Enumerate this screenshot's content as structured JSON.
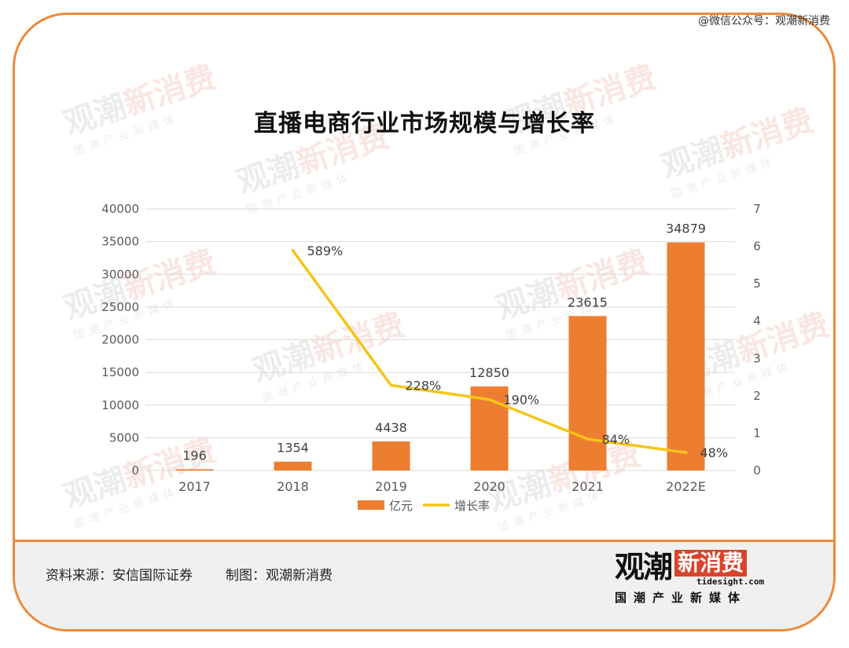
{
  "watermark_account": "@微信公众号：观潮新消费",
  "chart_data": {
    "type": "bar+line",
    "title": "直播电商行业市场规模与增长率",
    "categories": [
      "2017",
      "2018",
      "2019",
      "2020",
      "2021",
      "2022E"
    ],
    "series": [
      {
        "name": "亿元",
        "type": "bar",
        "axis": "left",
        "color": "#ed7d31",
        "values": [
          196,
          1354,
          4438,
          12850,
          23615,
          34879
        ],
        "labels": [
          "196",
          "1354",
          "4438",
          "12850",
          "23615",
          "34879"
        ]
      },
      {
        "name": "增长率",
        "type": "line",
        "axis": "right",
        "color": "#f5c518",
        "values": [
          null,
          5.89,
          2.28,
          1.9,
          0.84,
          0.48
        ],
        "labels": [
          "",
          "589%",
          "228%",
          "190%",
          "84%",
          "48%"
        ]
      }
    ],
    "y_left": {
      "min": 0,
      "max": 40000,
      "step": 5000,
      "ticks": [
        "0",
        "5000",
        "10000",
        "15000",
        "20000",
        "25000",
        "30000",
        "35000",
        "40000"
      ]
    },
    "y_right": {
      "min": 0,
      "max": 7,
      "step": 1,
      "ticks": [
        "0",
        "1",
        "2",
        "3",
        "4",
        "5",
        "6",
        "7"
      ]
    },
    "grid": true,
    "legend_position": "bottom"
  },
  "footer": {
    "source": "资料来源：安信国际证券",
    "made_by": "制图：观潮新消费"
  },
  "logo": {
    "part1": "观潮",
    "part2": "新消费",
    "url": "tidesight.com",
    "tagline": "国潮产业新媒体"
  },
  "colors": {
    "frame": "#ec8a3c",
    "bar": "#ed7d31",
    "line": "#f5c518",
    "logo_red": "#d8442b"
  }
}
